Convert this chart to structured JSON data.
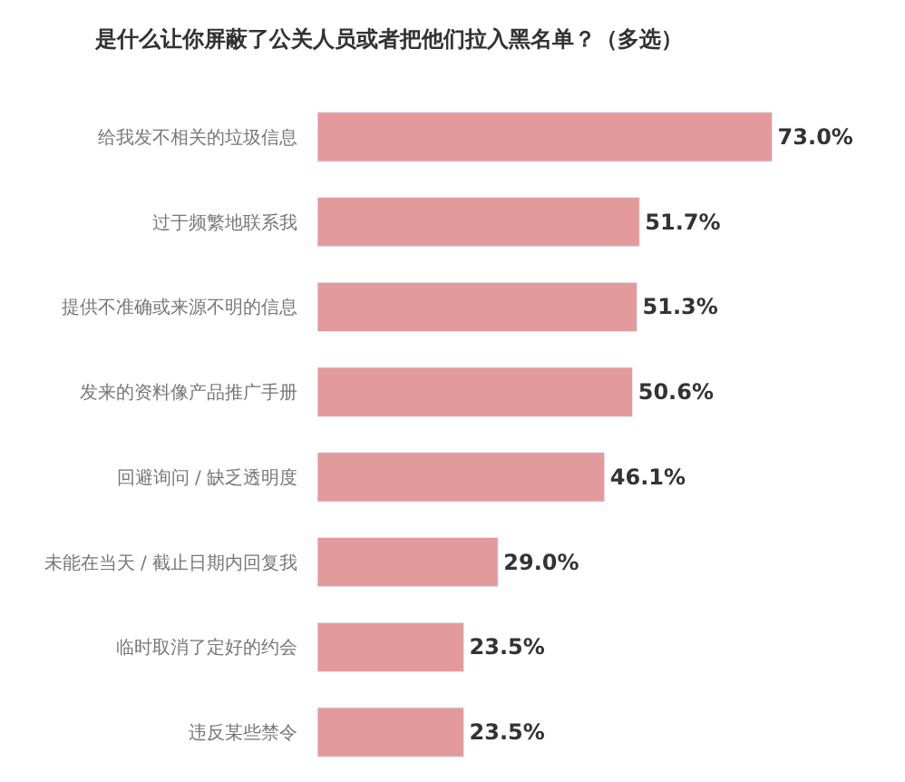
{
  "chart_data": {
    "type": "bar",
    "orientation": "horizontal",
    "title": "是什么让你屏蔽了公关人员或者把他们拉入黑名单？（多选）",
    "categories": [
      "给我发不相关的垃圾信息",
      "过于频繁地联系我",
      "提供不准确或来源不明的信息",
      "发来的资料像产品推广手册",
      "回避询问 / 缺乏透明度",
      "未能在当天 / 截止日期内回复我",
      "临时取消了定好的约会",
      "违反某些禁令"
    ],
    "values": [
      73.0,
      51.7,
      51.3,
      50.6,
      46.1,
      29.0,
      23.5,
      23.5
    ],
    "value_labels": [
      "73.0%",
      "51.7%",
      "51.3%",
      "50.6%",
      "46.1%",
      "29.0%",
      "23.5%",
      "23.5%"
    ],
    "color": "#e39a9c",
    "tick_labels": "y"
  }
}
